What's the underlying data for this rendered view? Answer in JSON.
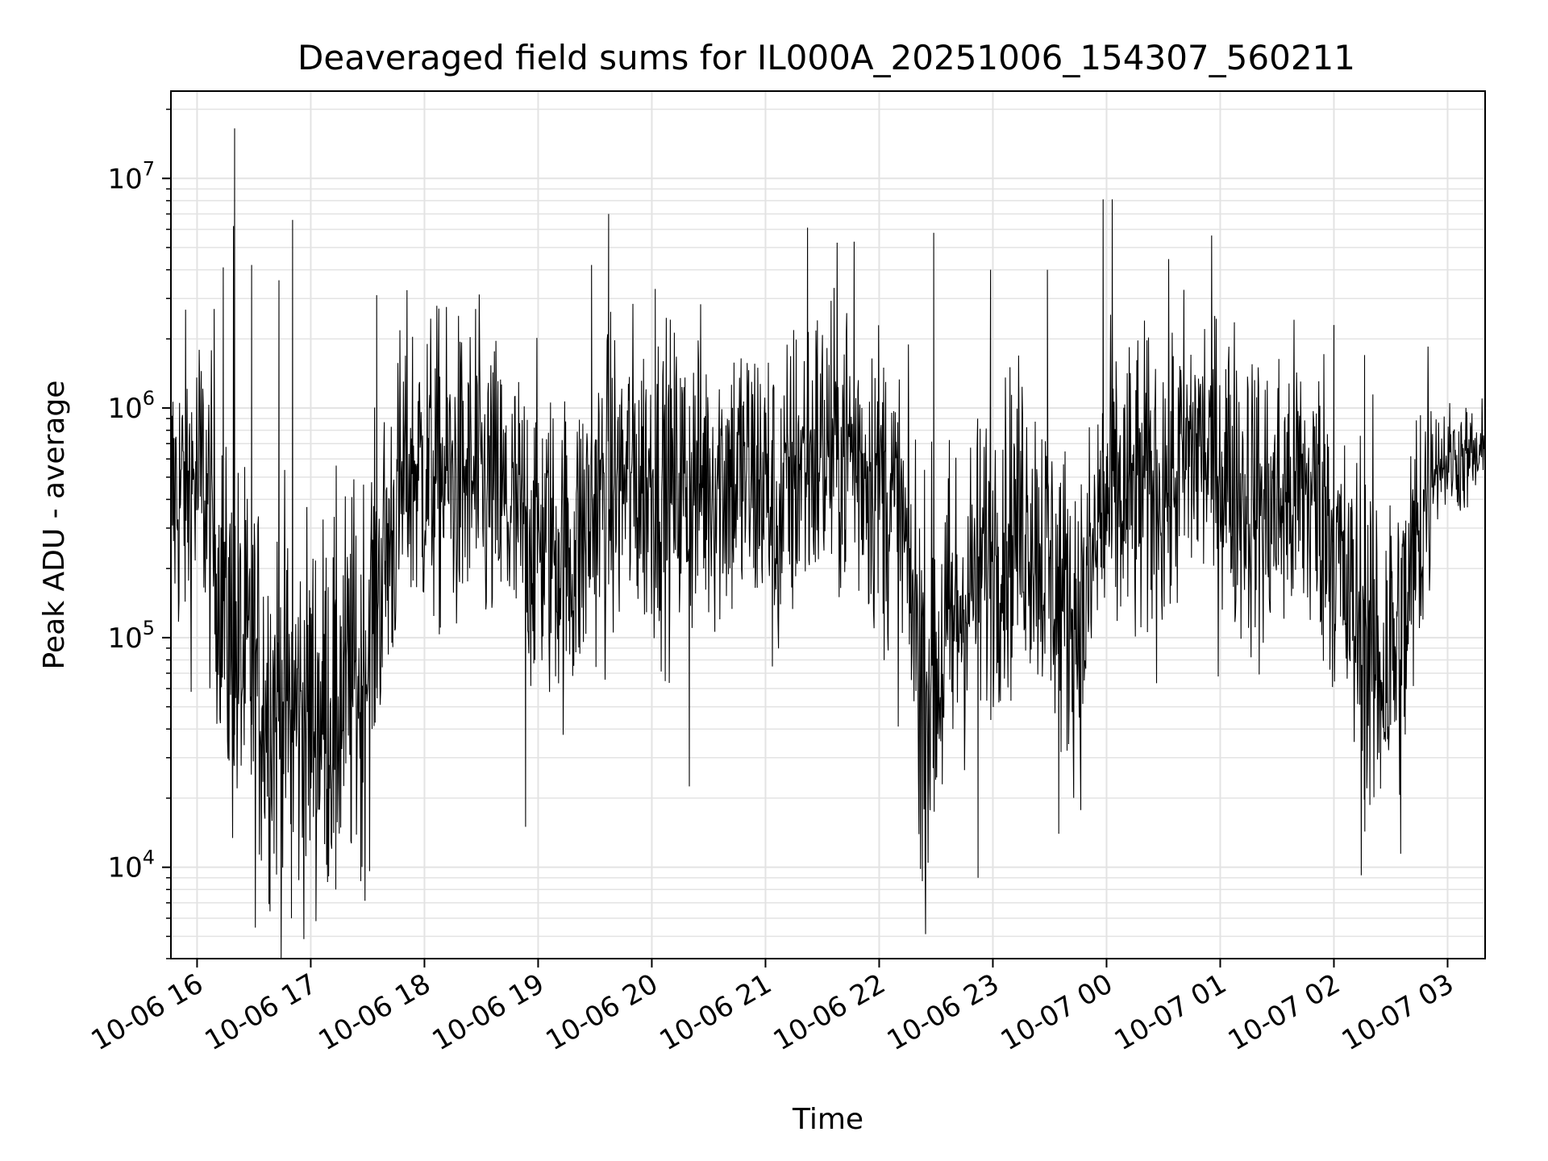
{
  "chart_data": {
    "type": "line",
    "title": "Deaveraged field sums for IL000A_20251006_154307_560211",
    "xlabel": "Time",
    "ylabel": "Peak ADU - average",
    "yscale": "log",
    "ylim": [
      4000,
      24000000
    ],
    "xlim_hours": [
      15.77,
      27.33
    ],
    "grid": true,
    "line_color": "#000000",
    "grid_color": "#e3e3e3",
    "x_ticks": [
      {
        "hour": 16,
        "label": "10-06 16"
      },
      {
        "hour": 17,
        "label": "10-06 17"
      },
      {
        "hour": 18,
        "label": "10-06 18"
      },
      {
        "hour": 19,
        "label": "10-06 19"
      },
      {
        "hour": 20,
        "label": "10-06 20"
      },
      {
        "hour": 21,
        "label": "10-06 21"
      },
      {
        "hour": 22,
        "label": "10-06 22"
      },
      {
        "hour": 23,
        "label": "10-06 23"
      },
      {
        "hour": 24,
        "label": "10-07 00"
      },
      {
        "hour": 25,
        "label": "10-07 01"
      },
      {
        "hour": 26,
        "label": "10-07 02"
      },
      {
        "hour": 27,
        "label": "10-07 03"
      }
    ],
    "y_ticks": [
      {
        "value": 10000,
        "base": "10",
        "exp": "4"
      },
      {
        "value": 100000,
        "base": "10",
        "exp": "5"
      },
      {
        "value": 1000000,
        "base": "10",
        "exp": "6"
      },
      {
        "value": 10000000,
        "base": "10",
        "exp": "7"
      }
    ],
    "level_profile": [
      [
        15.77,
        400000
      ],
      [
        16.05,
        500000
      ],
      [
        16.15,
        250000
      ],
      [
        16.3,
        90000
      ],
      [
        16.6,
        55000
      ],
      [
        16.9,
        45000
      ],
      [
        17.2,
        50000
      ],
      [
        17.45,
        70000
      ],
      [
        17.65,
        220000
      ],
      [
        17.85,
        550000
      ],
      [
        18.2,
        500000
      ],
      [
        18.6,
        430000
      ],
      [
        18.85,
        300000
      ],
      [
        19.0,
        280000
      ],
      [
        19.3,
        220000
      ],
      [
        19.5,
        380000
      ],
      [
        19.8,
        500000
      ],
      [
        20.2,
        450000
      ],
      [
        20.6,
        520000
      ],
      [
        21.0,
        480000
      ],
      [
        21.1,
        300000
      ],
      [
        21.3,
        600000
      ],
      [
        21.7,
        700000
      ],
      [
        22.0,
        500000
      ],
      [
        22.2,
        300000
      ],
      [
        22.4,
        60000
      ],
      [
        22.55,
        80000
      ],
      [
        22.75,
        150000
      ],
      [
        23.0,
        250000
      ],
      [
        23.3,
        350000
      ],
      [
        23.6,
        150000
      ],
      [
        23.8,
        120000
      ],
      [
        23.95,
        350000
      ],
      [
        24.2,
        400000
      ],
      [
        24.6,
        500000
      ],
      [
        24.8,
        700000
      ],
      [
        25.1,
        500000
      ],
      [
        25.4,
        350000
      ],
      [
        25.7,
        450000
      ],
      [
        25.95,
        350000
      ],
      [
        26.1,
        150000
      ],
      [
        26.35,
        80000
      ],
      [
        26.6,
        90000
      ],
      [
        26.75,
        300000
      ],
      [
        26.85,
        600000
      ],
      [
        27.33,
        600000
      ]
    ],
    "spikes": [
      {
        "hour": 16.33,
        "value": 16500000
      },
      {
        "hour": 16.32,
        "value": 6200000
      },
      {
        "hour": 16.23,
        "value": 4100000
      },
      {
        "hour": 16.48,
        "value": 4200000
      },
      {
        "hour": 16.15,
        "value": 2700000
      },
      {
        "hour": 16.84,
        "value": 6600000
      },
      {
        "hour": 16.72,
        "value": 3600000
      },
      {
        "hour": 17.58,
        "value": 3100000
      },
      {
        "hour": 18.45,
        "value": 2700000
      },
      {
        "hour": 19.47,
        "value": 4200000
      },
      {
        "hour": 19.62,
        "value": 7000000
      },
      {
        "hour": 20.03,
        "value": 3300000
      },
      {
        "hour": 21.37,
        "value": 6100000
      },
      {
        "hour": 21.78,
        "value": 5300000
      },
      {
        "hour": 22.48,
        "value": 5800000
      },
      {
        "hour": 22.98,
        "value": 4000000
      },
      {
        "hour": 23.48,
        "value": 4000000
      },
      {
        "hour": 23.97,
        "value": 8100000
      },
      {
        "hour": 24.05,
        "value": 8100000
      },
      {
        "hour": 26.0,
        "value": 2300000
      },
      {
        "hour": 26.27,
        "value": 1700000
      }
    ],
    "dips": [
      {
        "hour": 16.83,
        "value": 6000
      },
      {
        "hour": 17.22,
        "value": 8000
      },
      {
        "hour": 17.44,
        "value": 8700
      },
      {
        "hour": 18.89,
        "value": 15000
      },
      {
        "hour": 20.33,
        "value": 22500
      },
      {
        "hour": 22.38,
        "value": 8700
      },
      {
        "hour": 22.87,
        "value": 9000
      },
      {
        "hour": 23.58,
        "value": 14000
      },
      {
        "hour": 26.41,
        "value": 22000
      }
    ]
  }
}
